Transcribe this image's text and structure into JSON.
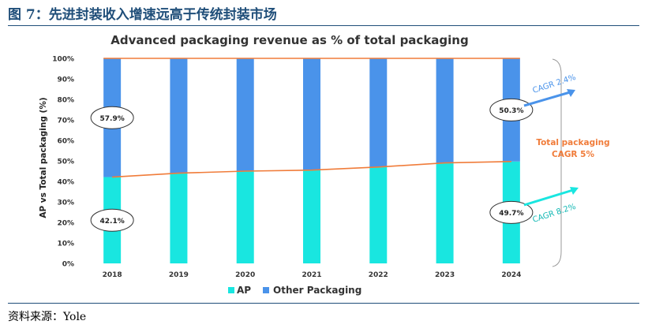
{
  "figure": {
    "title": "图 7：先进封装收入增速远高于传统封装市场",
    "source": "资料来源：Yole"
  },
  "chart_data": {
    "type": "bar",
    "stacked": true,
    "title": "Advanced packaging revenue as % of total packaging",
    "ylabel": "AP vs Total packaging (%)",
    "xlabel": "",
    "ylim": [
      0,
      100
    ],
    "yticks": [
      "0%",
      "10%",
      "20%",
      "30%",
      "40%",
      "50%",
      "60%",
      "70%",
      "80%",
      "90%",
      "100%"
    ],
    "categories": [
      "2018",
      "2019",
      "2020",
      "2021",
      "2022",
      "2023",
      "2024"
    ],
    "series": [
      {
        "name": "AP",
        "color": "#19e6e0",
        "values": [
          42.1,
          44,
          45,
          45.5,
          47,
          49,
          49.7
        ]
      },
      {
        "name": "Other Packaging",
        "color": "#4a93ea",
        "values": [
          57.9,
          56,
          55,
          54.5,
          53,
          51,
          50.3
        ]
      }
    ],
    "lines": [
      {
        "color": "#f07c3a",
        "values": [
          42.1,
          44,
          45,
          45.5,
          47,
          49,
          49.7
        ]
      },
      {
        "color": "#f07c3a",
        "values": [
          100,
          100,
          100,
          100,
          100,
          100,
          100
        ]
      }
    ],
    "bubble_labels": [
      {
        "category": "2018",
        "series": "Other Packaging",
        "text": "57.9%"
      },
      {
        "category": "2018",
        "series": "AP",
        "text": "42.1%"
      },
      {
        "category": "2024",
        "series": "Other Packaging",
        "text": "50.3%"
      },
      {
        "category": "2024",
        "series": "AP",
        "text": "49.7%"
      }
    ],
    "annotations": [
      {
        "text": "CAGR 2.4%",
        "color": "#4a93ea"
      },
      {
        "text": "Total packaging",
        "color": "#f07c3a"
      },
      {
        "text": "CAGR 5%",
        "color": "#f07c3a"
      },
      {
        "text": "CAGR 8.2%",
        "color": "#19e6e0"
      }
    ],
    "legend_position": "bottom",
    "grid": false
  }
}
